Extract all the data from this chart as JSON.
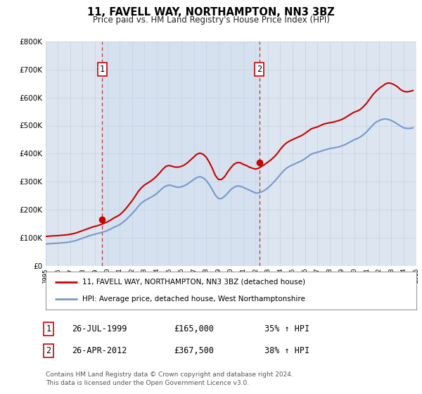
{
  "title": "11, FAVELL WAY, NORTHAMPTON, NN3 3BZ",
  "subtitle": "Price paid vs. HM Land Registry's House Price Index (HPI)",
  "fig_bg_color": "#ffffff",
  "plot_bg_color": "#dde6f0",
  "grid_color": "#c8d4e0",
  "red_color": "#cc0000",
  "blue_color": "#7799cc",
  "vspan_color": "#c8d8ee",
  "sale1_year": 1999.57,
  "sale1_price": 165000,
  "sale1_label": "1",
  "sale2_year": 2012.32,
  "sale2_price": 367500,
  "sale2_label": "2",
  "xmin": 1995,
  "xmax": 2025,
  "ymin": 0,
  "ymax": 800000,
  "legend_line1": "11, FAVELL WAY, NORTHAMPTON, NN3 3BZ (detached house)",
  "legend_line2": "HPI: Average price, detached house, West Northamptonshire",
  "table_row1_num": "1",
  "table_row1_date": "26-JUL-1999",
  "table_row1_price": "£165,000",
  "table_row1_hpi": "35% ↑ HPI",
  "table_row2_num": "2",
  "table_row2_date": "26-APR-2012",
  "table_row2_price": "£367,500",
  "table_row2_hpi": "38% ↑ HPI",
  "footer": "Contains HM Land Registry data © Crown copyright and database right 2024.\nThis data is licensed under the Open Government Licence v3.0.",
  "red_hpi_data": [
    [
      1995.0,
      105000
    ],
    [
      1995.25,
      106000
    ],
    [
      1995.5,
      107000
    ],
    [
      1995.75,
      107500
    ],
    [
      1996.0,
      108000
    ],
    [
      1996.25,
      109000
    ],
    [
      1996.5,
      110000
    ],
    [
      1996.75,
      111000
    ],
    [
      1997.0,
      113000
    ],
    [
      1997.25,
      115000
    ],
    [
      1997.5,
      118000
    ],
    [
      1997.75,
      122000
    ],
    [
      1998.0,
      126000
    ],
    [
      1998.25,
      130000
    ],
    [
      1998.5,
      134000
    ],
    [
      1998.75,
      138000
    ],
    [
      1999.0,
      141000
    ],
    [
      1999.25,
      144000
    ],
    [
      1999.5,
      148000
    ],
    [
      1999.75,
      152000
    ],
    [
      2000.0,
      157000
    ],
    [
      2000.25,
      163000
    ],
    [
      2000.5,
      170000
    ],
    [
      2000.75,
      176000
    ],
    [
      2001.0,
      182000
    ],
    [
      2001.25,
      192000
    ],
    [
      2001.5,
      204000
    ],
    [
      2001.75,
      218000
    ],
    [
      2002.0,
      232000
    ],
    [
      2002.25,
      248000
    ],
    [
      2002.5,
      265000
    ],
    [
      2002.75,
      278000
    ],
    [
      2003.0,
      288000
    ],
    [
      2003.25,
      295000
    ],
    [
      2003.5,
      302000
    ],
    [
      2003.75,
      310000
    ],
    [
      2004.0,
      320000
    ],
    [
      2004.25,
      332000
    ],
    [
      2004.5,
      345000
    ],
    [
      2004.75,
      355000
    ],
    [
      2005.0,
      358000
    ],
    [
      2005.25,
      355000
    ],
    [
      2005.5,
      352000
    ],
    [
      2005.75,
      352000
    ],
    [
      2006.0,
      355000
    ],
    [
      2006.25,
      360000
    ],
    [
      2006.5,
      368000
    ],
    [
      2006.75,
      378000
    ],
    [
      2007.0,
      388000
    ],
    [
      2007.25,
      398000
    ],
    [
      2007.5,
      402000
    ],
    [
      2007.75,
      398000
    ],
    [
      2008.0,
      388000
    ],
    [
      2008.25,
      370000
    ],
    [
      2008.5,
      348000
    ],
    [
      2008.75,
      322000
    ],
    [
      2009.0,
      308000
    ],
    [
      2009.25,
      308000
    ],
    [
      2009.5,
      318000
    ],
    [
      2009.75,
      335000
    ],
    [
      2010.0,
      350000
    ],
    [
      2010.25,
      362000
    ],
    [
      2010.5,
      368000
    ],
    [
      2010.75,
      368000
    ],
    [
      2011.0,
      362000
    ],
    [
      2011.25,
      358000
    ],
    [
      2011.5,
      352000
    ],
    [
      2011.75,
      348000
    ],
    [
      2012.0,
      345000
    ],
    [
      2012.25,
      348000
    ],
    [
      2012.5,
      355000
    ],
    [
      2012.75,
      362000
    ],
    [
      2013.0,
      370000
    ],
    [
      2013.25,
      378000
    ],
    [
      2013.5,
      388000
    ],
    [
      2013.75,
      400000
    ],
    [
      2014.0,
      415000
    ],
    [
      2014.25,
      428000
    ],
    [
      2014.5,
      438000
    ],
    [
      2014.75,
      445000
    ],
    [
      2015.0,
      450000
    ],
    [
      2015.25,
      455000
    ],
    [
      2015.5,
      460000
    ],
    [
      2015.75,
      465000
    ],
    [
      2016.0,
      472000
    ],
    [
      2016.25,
      480000
    ],
    [
      2016.5,
      488000
    ],
    [
      2016.75,
      492000
    ],
    [
      2017.0,
      495000
    ],
    [
      2017.25,
      500000
    ],
    [
      2017.5,
      505000
    ],
    [
      2017.75,
      508000
    ],
    [
      2018.0,
      510000
    ],
    [
      2018.25,
      512000
    ],
    [
      2018.5,
      515000
    ],
    [
      2018.75,
      518000
    ],
    [
      2019.0,
      522000
    ],
    [
      2019.25,
      528000
    ],
    [
      2019.5,
      535000
    ],
    [
      2019.75,
      542000
    ],
    [
      2020.0,
      548000
    ],
    [
      2020.25,
      552000
    ],
    [
      2020.5,
      558000
    ],
    [
      2020.75,
      568000
    ],
    [
      2021.0,
      580000
    ],
    [
      2021.25,
      595000
    ],
    [
      2021.5,
      610000
    ],
    [
      2021.75,
      622000
    ],
    [
      2022.0,
      632000
    ],
    [
      2022.25,
      640000
    ],
    [
      2022.5,
      648000
    ],
    [
      2022.75,
      652000
    ],
    [
      2023.0,
      650000
    ],
    [
      2023.25,
      645000
    ],
    [
      2023.5,
      638000
    ],
    [
      2023.75,
      628000
    ],
    [
      2024.0,
      622000
    ],
    [
      2024.25,
      620000
    ],
    [
      2024.5,
      622000
    ],
    [
      2024.75,
      625000
    ]
  ],
  "blue_hpi_data": [
    [
      1995.0,
      78000
    ],
    [
      1995.25,
      79000
    ],
    [
      1995.5,
      80000
    ],
    [
      1995.75,
      80500
    ],
    [
      1996.0,
      81000
    ],
    [
      1996.25,
      82000
    ],
    [
      1996.5,
      83000
    ],
    [
      1996.75,
      84000
    ],
    [
      1997.0,
      86000
    ],
    [
      1997.25,
      88000
    ],
    [
      1997.5,
      91000
    ],
    [
      1997.75,
      95000
    ],
    [
      1998.0,
      99000
    ],
    [
      1998.25,
      103000
    ],
    [
      1998.5,
      107000
    ],
    [
      1998.75,
      110000
    ],
    [
      1999.0,
      113000
    ],
    [
      1999.25,
      116000
    ],
    [
      1999.5,
      119000
    ],
    [
      1999.75,
      122000
    ],
    [
      2000.0,
      126000
    ],
    [
      2000.25,
      131000
    ],
    [
      2000.5,
      137000
    ],
    [
      2000.75,
      142000
    ],
    [
      2001.0,
      147000
    ],
    [
      2001.25,
      155000
    ],
    [
      2001.5,
      164000
    ],
    [
      2001.75,
      175000
    ],
    [
      2002.0,
      186000
    ],
    [
      2002.25,
      198000
    ],
    [
      2002.5,
      212000
    ],
    [
      2002.75,
      224000
    ],
    [
      2003.0,
      232000
    ],
    [
      2003.25,
      238000
    ],
    [
      2003.5,
      244000
    ],
    [
      2003.75,
      250000
    ],
    [
      2004.0,
      258000
    ],
    [
      2004.25,
      268000
    ],
    [
      2004.5,
      278000
    ],
    [
      2004.75,
      285000
    ],
    [
      2005.0,
      288000
    ],
    [
      2005.25,
      286000
    ],
    [
      2005.5,
      282000
    ],
    [
      2005.75,
      280000
    ],
    [
      2006.0,
      282000
    ],
    [
      2006.25,
      286000
    ],
    [
      2006.5,
      292000
    ],
    [
      2006.75,
      300000
    ],
    [
      2007.0,
      308000
    ],
    [
      2007.25,
      315000
    ],
    [
      2007.5,
      318000
    ],
    [
      2007.75,
      314000
    ],
    [
      2008.0,
      305000
    ],
    [
      2008.25,
      290000
    ],
    [
      2008.5,
      272000
    ],
    [
      2008.75,
      252000
    ],
    [
      2009.0,
      240000
    ],
    [
      2009.25,
      240000
    ],
    [
      2009.5,
      248000
    ],
    [
      2009.75,
      260000
    ],
    [
      2010.0,
      272000
    ],
    [
      2010.25,
      280000
    ],
    [
      2010.5,
      285000
    ],
    [
      2010.75,
      284000
    ],
    [
      2011.0,
      280000
    ],
    [
      2011.25,
      275000
    ],
    [
      2011.5,
      270000
    ],
    [
      2011.75,
      265000
    ],
    [
      2012.0,
      260000
    ],
    [
      2012.25,
      260000
    ],
    [
      2012.5,
      264000
    ],
    [
      2012.75,
      270000
    ],
    [
      2013.0,
      278000
    ],
    [
      2013.25,
      288000
    ],
    [
      2013.5,
      300000
    ],
    [
      2013.75,
      312000
    ],
    [
      2014.0,
      325000
    ],
    [
      2014.25,
      338000
    ],
    [
      2014.5,
      348000
    ],
    [
      2014.75,
      355000
    ],
    [
      2015.0,
      360000
    ],
    [
      2015.25,
      365000
    ],
    [
      2015.5,
      370000
    ],
    [
      2015.75,
      375000
    ],
    [
      2016.0,
      382000
    ],
    [
      2016.25,
      390000
    ],
    [
      2016.5,
      398000
    ],
    [
      2016.75,
      402000
    ],
    [
      2017.0,
      405000
    ],
    [
      2017.25,
      408000
    ],
    [
      2017.5,
      412000
    ],
    [
      2017.75,
      415000
    ],
    [
      2018.0,
      418000
    ],
    [
      2018.25,
      420000
    ],
    [
      2018.5,
      422000
    ],
    [
      2018.75,
      424000
    ],
    [
      2019.0,
      428000
    ],
    [
      2019.25,
      432000
    ],
    [
      2019.5,
      438000
    ],
    [
      2019.75,
      444000
    ],
    [
      2020.0,
      450000
    ],
    [
      2020.25,
      454000
    ],
    [
      2020.5,
      460000
    ],
    [
      2020.75,
      468000
    ],
    [
      2021.0,
      478000
    ],
    [
      2021.25,
      490000
    ],
    [
      2021.5,
      502000
    ],
    [
      2021.75,
      512000
    ],
    [
      2022.0,
      518000
    ],
    [
      2022.25,
      522000
    ],
    [
      2022.5,
      524000
    ],
    [
      2022.75,
      522000
    ],
    [
      2023.0,
      518000
    ],
    [
      2023.25,
      512000
    ],
    [
      2023.5,
      505000
    ],
    [
      2023.75,
      498000
    ],
    [
      2024.0,
      492000
    ],
    [
      2024.25,
      490000
    ],
    [
      2024.5,
      490000
    ],
    [
      2024.75,
      492000
    ]
  ]
}
